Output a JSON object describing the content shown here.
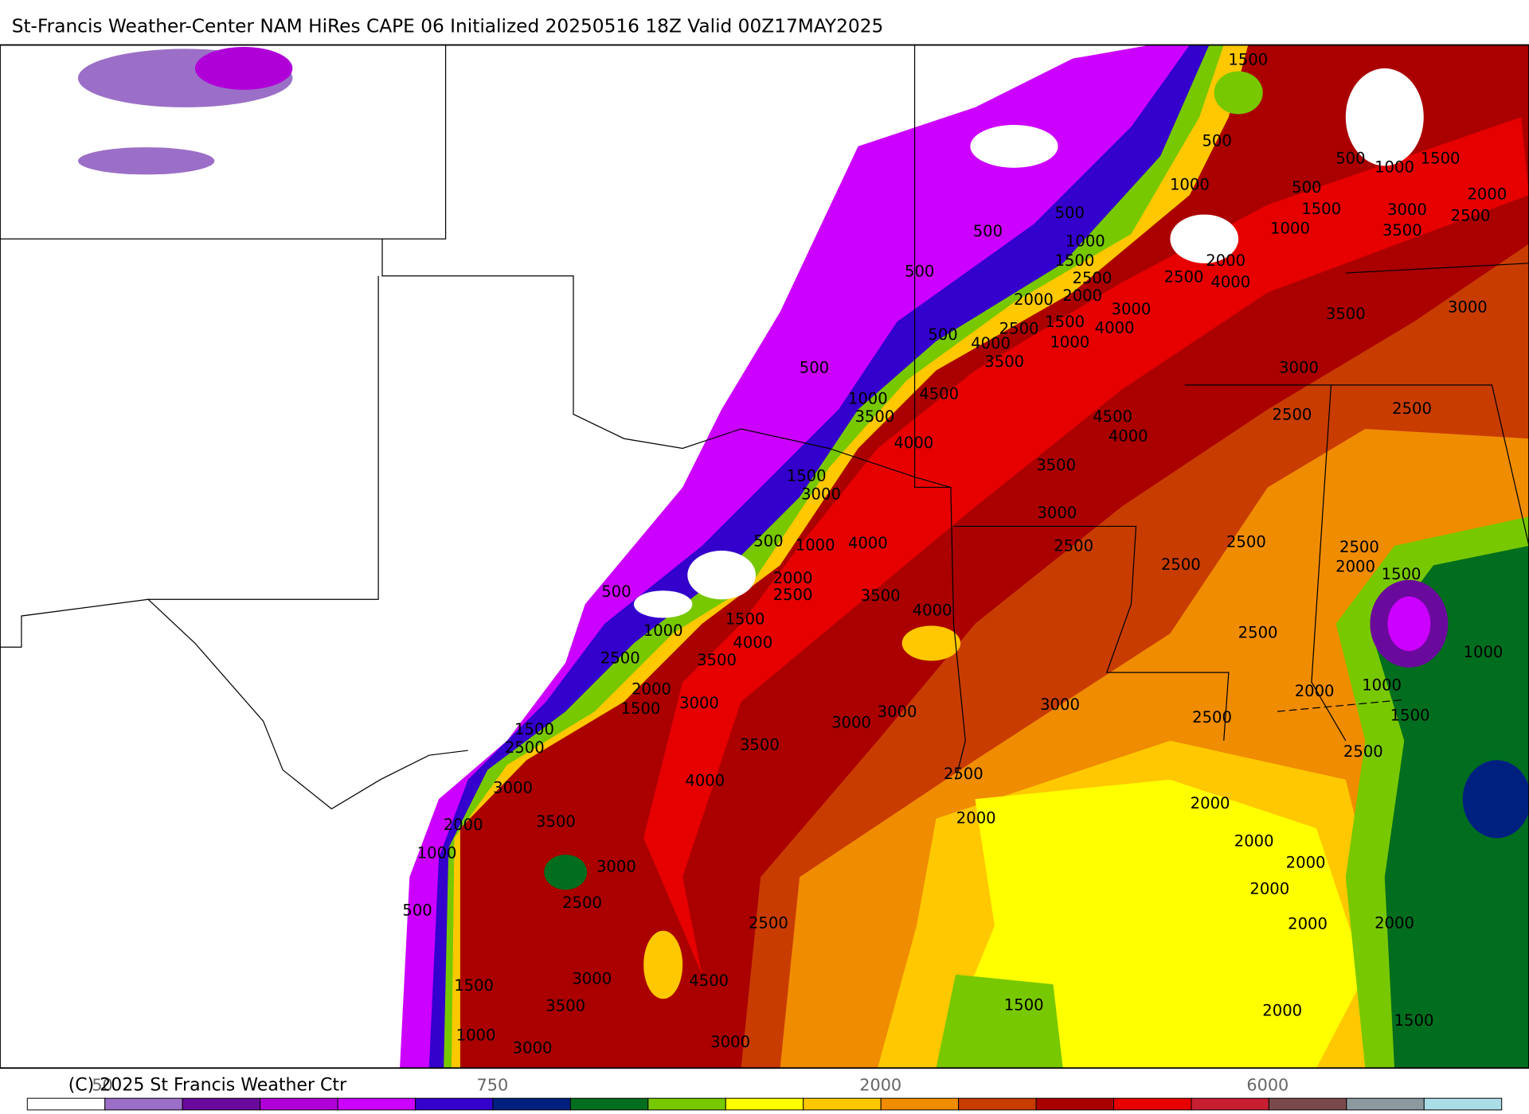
{
  "header": {
    "title": "St-Francis Weather-Center NAM HiRes CAPE  06 Initialized 20250516 18Z Valid 00Z17MAY2025"
  },
  "footer": {
    "copyright": "(C) 2025 St Francis Weather Ctr"
  },
  "colorbar": {
    "labels": [
      "50",
      "750",
      "2000",
      "6000"
    ],
    "colors": [
      "#ffffff",
      "#9b6fc7",
      "#6a0a9c",
      "#b000d8",
      "#cc00ff",
      "#3300cc",
      "#002080",
      "#006e1e",
      "#78c800",
      "#ffff00",
      "#ffc800",
      "#f08c00",
      "#c83c00",
      "#aa0000",
      "#e60000",
      "#c81e32",
      "#7a4a4a",
      "#8c9aa0",
      "#aadde6"
    ]
  },
  "contour_labels": [
    "1500",
    "500",
    "1000",
    "500",
    "1500",
    "1000",
    "500",
    "1500",
    "2000",
    "3000",
    "2500",
    "500",
    "500",
    "1000",
    "1000",
    "3500",
    "2000",
    "1500",
    "2500",
    "2500",
    "4000",
    "500",
    "2000",
    "2000",
    "3000",
    "3500",
    "3000",
    "2500",
    "1500",
    "4000",
    "500",
    "4000",
    "1000",
    "3500",
    "3000",
    "500",
    "4500",
    "1000",
    "3500",
    "2500",
    "2500",
    "4500",
    "4000",
    "4000",
    "3500",
    "1500",
    "3000",
    "3000",
    "500",
    "1000",
    "4000",
    "2500",
    "2500",
    "2500",
    "2000",
    "2500",
    "2000",
    "1500",
    "2500",
    "3500",
    "500",
    "4000",
    "1500",
    "1000",
    "4000",
    "2500",
    "2500",
    "3500",
    "1000",
    "2000",
    "3000",
    "1500",
    "3000",
    "3000",
    "2000",
    "1000",
    "3000",
    "2500",
    "1500",
    "1500",
    "2500",
    "3500",
    "2500",
    "3000",
    "4000",
    "2500",
    "2000",
    "3500",
    "2000",
    "2000",
    "1000",
    "3000",
    "2000",
    "2000",
    "2000",
    "2500",
    "500",
    "2500",
    "2000",
    "2000",
    "3000",
    "4500",
    "1500",
    "1500",
    "3500",
    "2000",
    "1500",
    "1000",
    "3000",
    "3000"
  ]
}
